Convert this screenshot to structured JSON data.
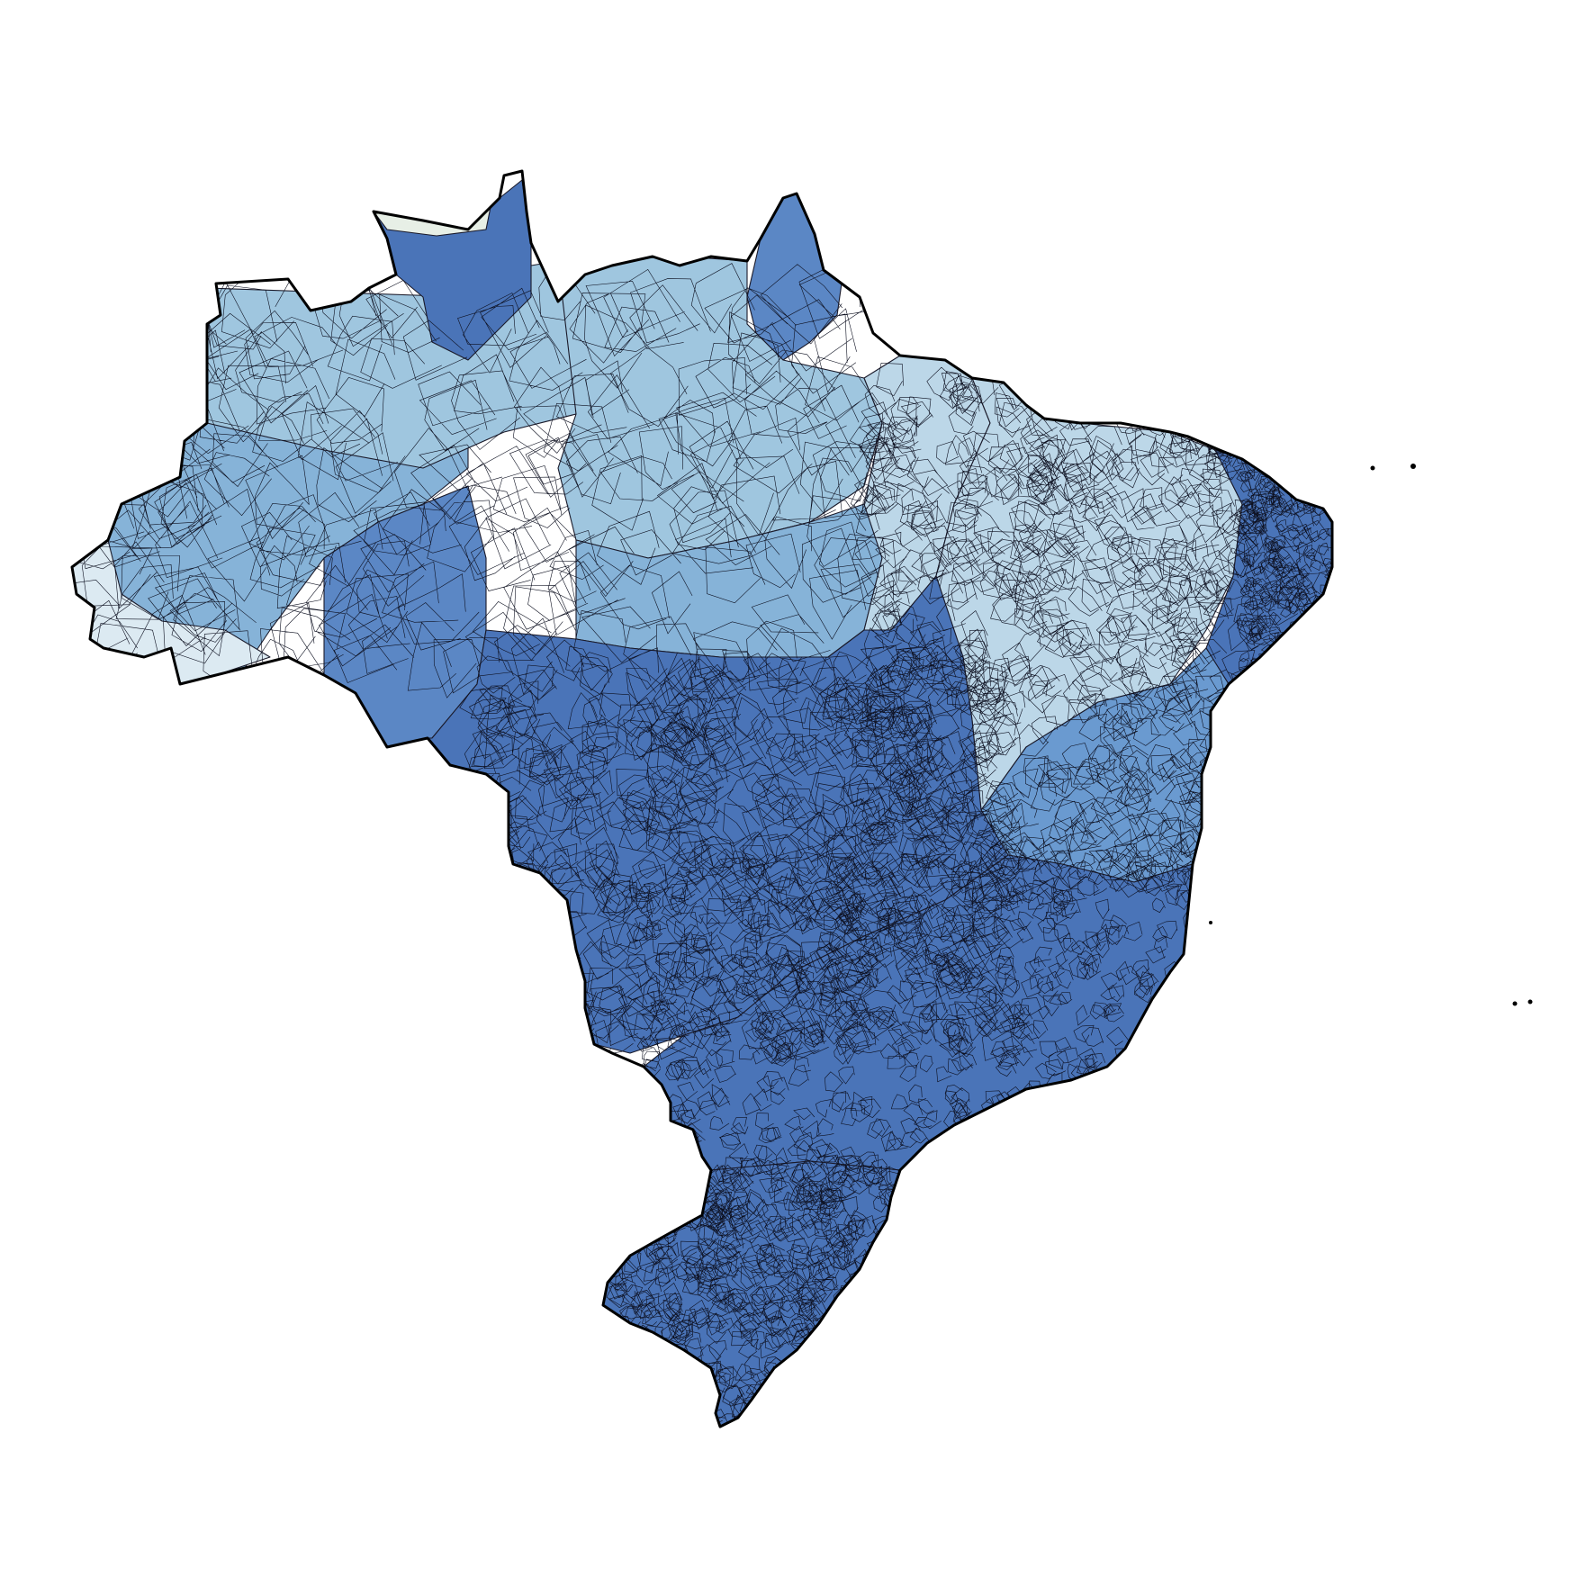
{
  "map": {
    "type": "choropleth",
    "country": "",
    "title": "",
    "legend": null,
    "palette": {
      "very_light": "#dceaf2",
      "light": "#bcd7e8",
      "light_mid": "#9fc6df",
      "mid": "#86b3d8",
      "mid_dark": "#6a9ad0",
      "dark": "#5b87c5",
      "darkest": "#4a74b8",
      "no_data": "#e7efe6",
      "border": "#000000",
      "background": "#ffffff"
    },
    "regions": [
      {
        "id": "north-amazon-west",
        "shade": "mid"
      },
      {
        "id": "north-amazon-center",
        "shade": "light_mid"
      },
      {
        "id": "roraima",
        "shade": "darkest"
      },
      {
        "id": "roraima-tip",
        "shade": "no_data"
      },
      {
        "id": "amapa",
        "shade": "dark"
      },
      {
        "id": "para-north",
        "shade": "light_mid"
      },
      {
        "id": "para-south",
        "shade": "mid"
      },
      {
        "id": "acre",
        "shade": "very_light"
      },
      {
        "id": "rondonia",
        "shade": "dark"
      },
      {
        "id": "maranhao",
        "shade": "light"
      },
      {
        "id": "northeast-interior",
        "shade": "light"
      },
      {
        "id": "northeast-coast",
        "shade": "darkest"
      },
      {
        "id": "bahia",
        "shade": "mid_dark"
      },
      {
        "id": "center-west",
        "shade": "darkest"
      },
      {
        "id": "southeast",
        "shade": "darkest"
      },
      {
        "id": "south",
        "shade": "darkest"
      }
    ]
  }
}
